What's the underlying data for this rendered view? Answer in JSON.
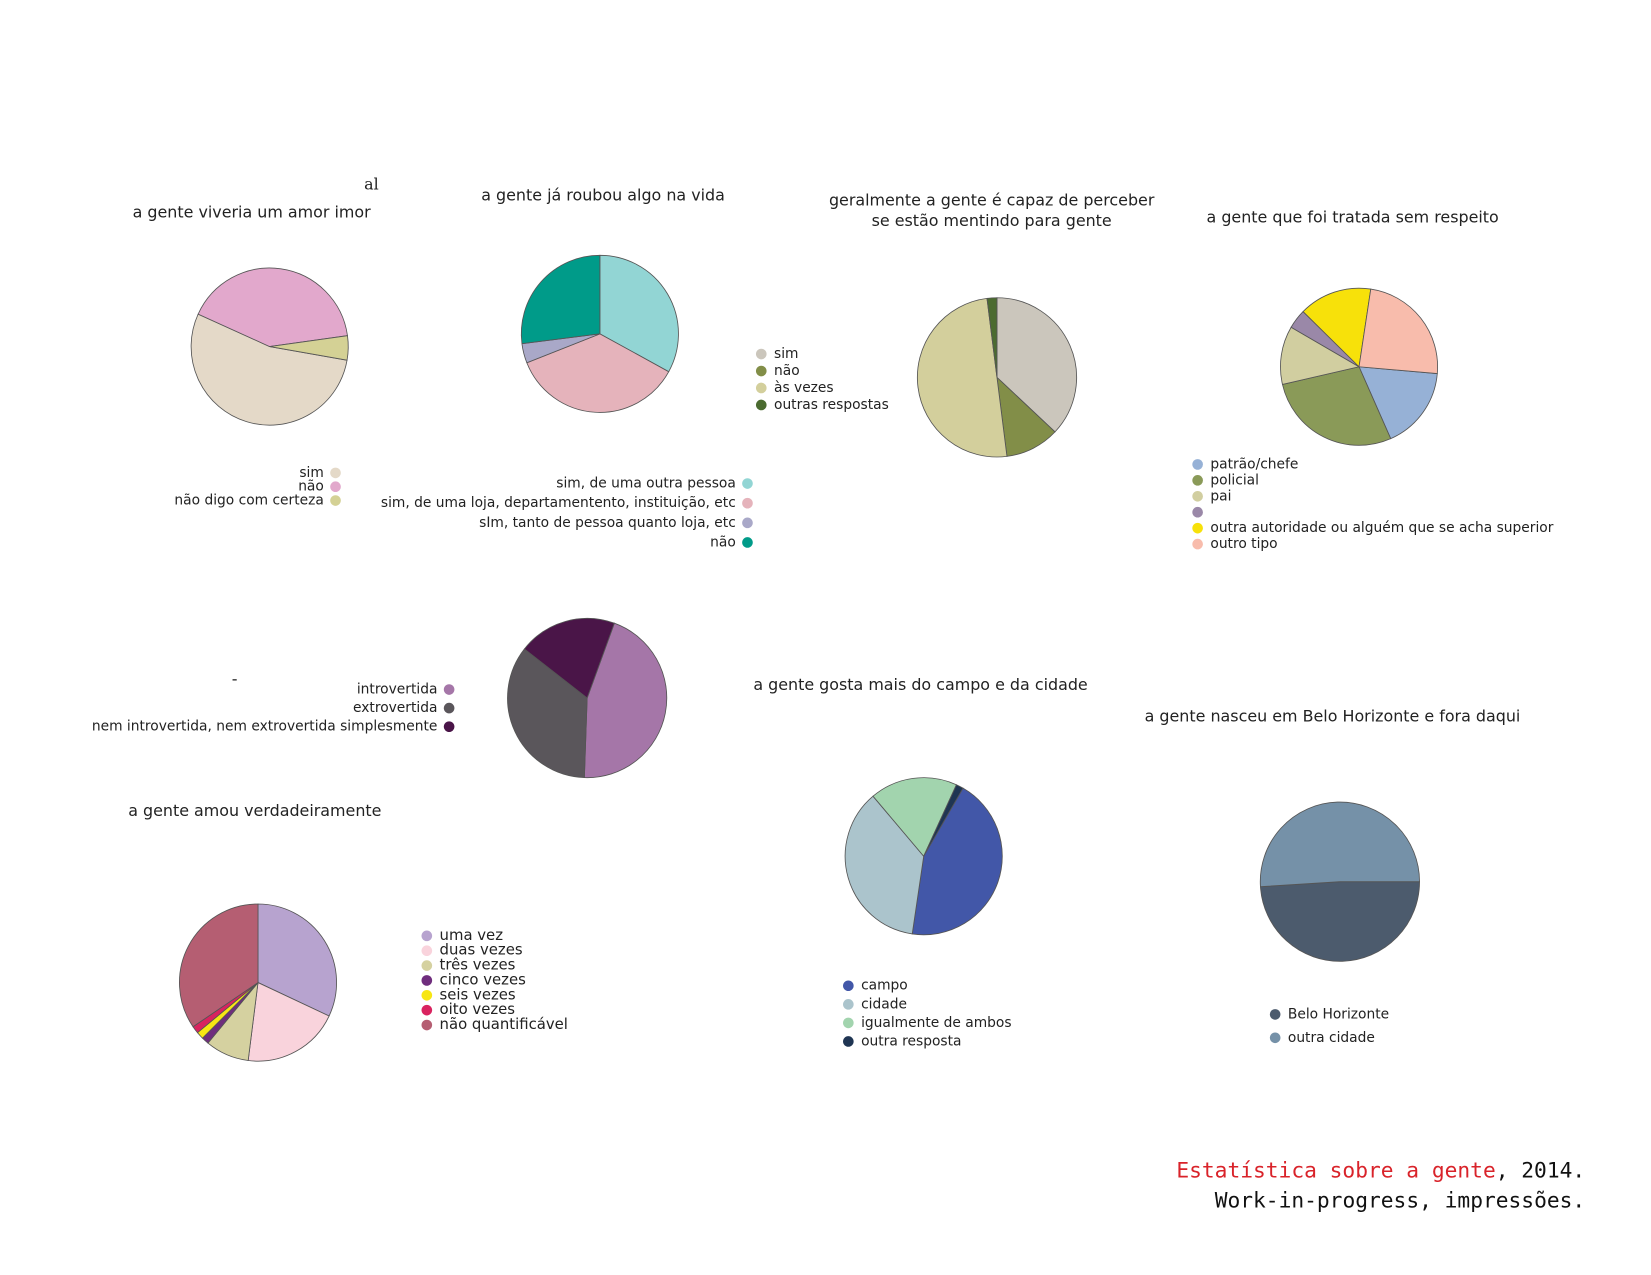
{
  "chart_data": [
    {
      "type": "pie",
      "title": [
        "a gente viveria um amor imor"
      ],
      "categories": [
        "sim",
        "não",
        "não digo com certeza"
      ],
      "values": [
        54,
        41,
        5
      ],
      "colors": [
        "#e4d9c8",
        "#e2a8cc",
        "#d4d195"
      ]
    },
    {
      "type": "pie",
      "title": [
        "a gente já roubou algo na vida"
      ],
      "categories": [
        "sim, de uma outra pessoa",
        "sim, de uma loja, departamentento, instituição, etc",
        "sIm, tanto de pessoa quanto loja, etc",
        "não"
      ],
      "values": [
        33,
        36,
        4,
        27
      ],
      "colors": [
        "#92d5d4",
        "#e5b3bb",
        "#a9a8c8",
        "#009b89"
      ]
    },
    {
      "type": "pie",
      "title": [
        "geralmente a gente é capaz de perceber",
        "se estão mentindo para gente"
      ],
      "categories": [
        "sim",
        "não",
        "às vezes",
        "outras respostas"
      ],
      "values": [
        37,
        11,
        50,
        2
      ],
      "colors": [
        "#cbc6bc",
        "#828e48",
        "#d3cf9c",
        "#4b6b30"
      ]
    },
    {
      "type": "pie",
      "title": [
        "a gente que foi tratada sem respeito"
      ],
      "categories": [
        "patrão/chefe",
        "policial",
        "pai",
        null,
        "outra autoridade ou alguém que se acha superior",
        "outro tipo"
      ],
      "values": [
        17,
        28,
        12,
        4,
        15,
        24
      ],
      "colors": [
        "#96b1d6",
        "#8a9a58",
        "#d1cea0",
        "#9a88a8",
        "#f7e10a",
        "#f8bcac"
      ]
    },
    {
      "type": "pie",
      "title": [
        "-"
      ],
      "categories": [
        "introvertida",
        "extrovertida",
        "nem introvertida, nem extrovertida simplesmente"
      ],
      "values": [
        45,
        35,
        20
      ],
      "colors": [
        "#a576a8",
        "#5a565b",
        "#4a1548"
      ]
    },
    {
      "type": "pie",
      "title": [
        "a  gente amou verdadeiramente"
      ],
      "categories": [
        "uma vez",
        "duas vezes",
        "três vezes",
        "cinco vezes",
        "seis vezes",
        "oito vezes",
        "não quantificável"
      ],
      "values": [
        32,
        20,
        9,
        1.5,
        1.5,
        1.5,
        34.5
      ],
      "colors": [
        "#b7a3cf",
        "#f9d3dc",
        "#d5d1a0",
        "#6f2d7d",
        "#f7e614",
        "#d9235f",
        "#b55e72"
      ]
    },
    {
      "type": "pie",
      "title": [
        "a gente gosta mais do campo e da cidade"
      ],
      "categories": [
        "campo",
        "cidade",
        "igualmente de ambos",
        "outra resposta"
      ],
      "values": [
        44,
        36.5,
        18,
        1.5
      ],
      "colors": [
        "#4257a8",
        "#abc4cc",
        "#a2d4ae",
        "#1f3553"
      ]
    },
    {
      "type": "pie",
      "title": [
        "a gente nasceu em Belo Horizonte e fora daqui"
      ],
      "categories": [
        "Belo Horizonte",
        "outra cidade"
      ],
      "values": [
        49,
        51
      ],
      "colors": [
        "#4c5b6d",
        "#7591a8"
      ]
    }
  ],
  "stray_text": "al",
  "footer": {
    "title": "Estatística sobre a gente",
    "year": ", 2014.",
    "line2": "Work-in-progress, impressões."
  }
}
